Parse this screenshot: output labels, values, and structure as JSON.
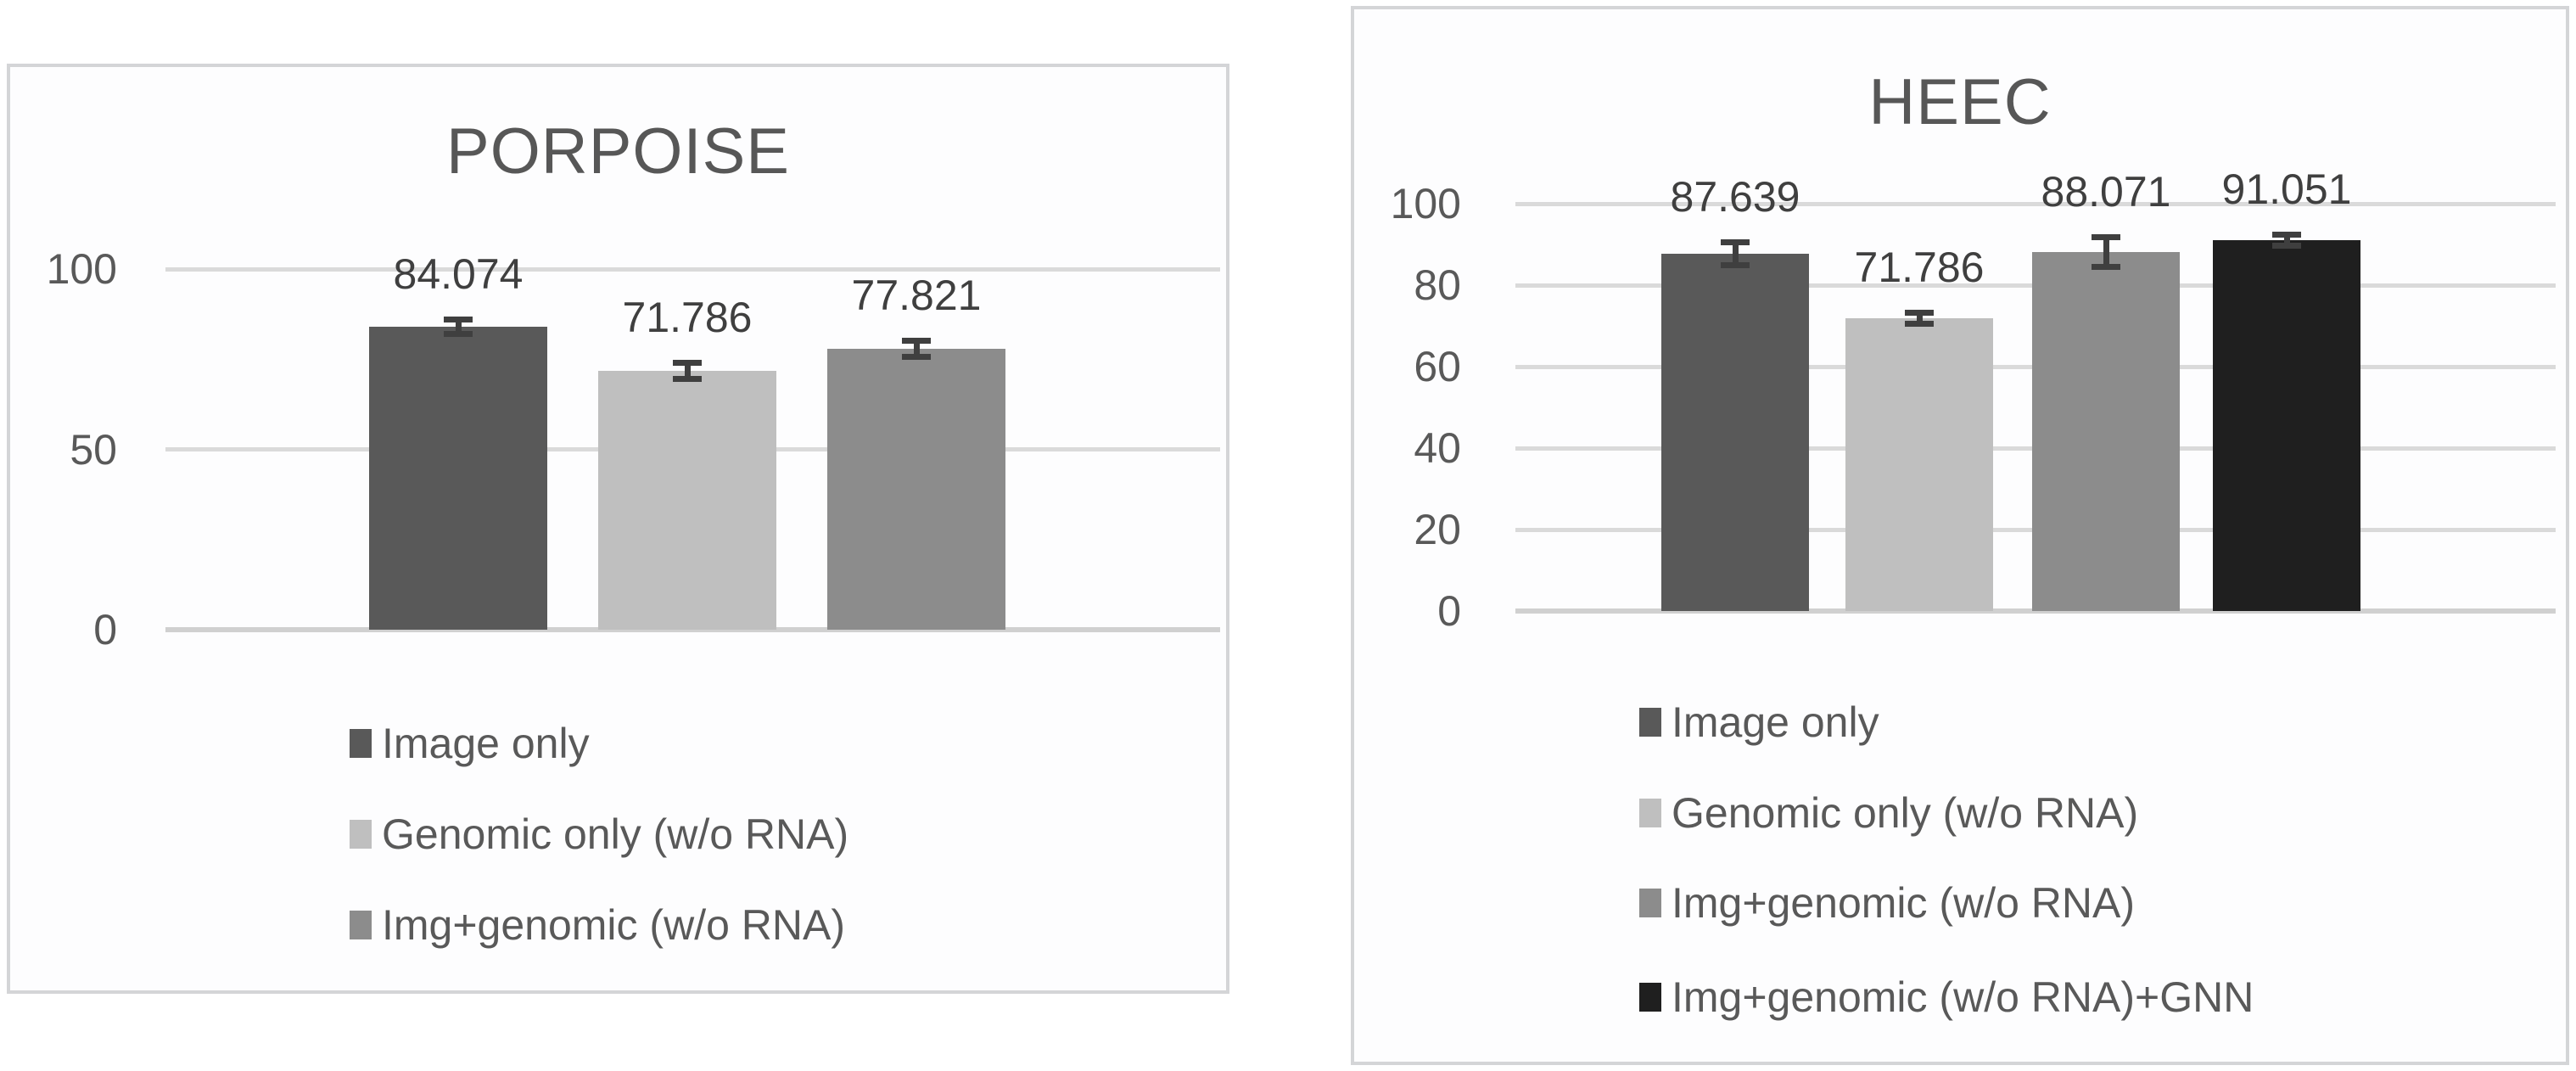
{
  "figure": {
    "background": "#ffffff",
    "panel_background": "#fdfdfe",
    "panel_border_color": "#d4d5d7"
  },
  "colors": {
    "gridline": "#dadada",
    "baseline": "#d0d0d0",
    "axis_text": "#595959",
    "data_label_text": "#3f3f3f",
    "title_text": "#575757",
    "error_bar": "#3f3f3f"
  },
  "chart_data": [
    {
      "id": "porpoise",
      "type": "bar",
      "title": "PORPOISE",
      "categories": [
        "Image only",
        "Genomic only (w/o RNA)",
        "Img+genomic (w/o RNA)"
      ],
      "values": [
        84.074,
        71.786,
        77.821
      ],
      "data_labels": [
        "84.074",
        "71.786",
        "77.821"
      ],
      "errors": [
        2.8,
        3.0,
        3.0
      ],
      "bar_colors": [
        "#595959",
        "#bfbfbf",
        "#8c8c8c"
      ],
      "ytick_labels": [
        "100",
        "50",
        "0"
      ],
      "yticks": [
        100,
        50,
        0
      ],
      "ylim": [
        0,
        100
      ],
      "grid": true,
      "legend_position": "bottom-left-vertical",
      "legend": [
        {
          "label": "Image only",
          "color": "#595959"
        },
        {
          "label": "Genomic only (w/o RNA)",
          "color": "#bfbfbf"
        },
        {
          "label": "Img+genomic (w/o RNA)",
          "color": "#8c8c8c"
        }
      ]
    },
    {
      "id": "heec",
      "type": "bar",
      "title": "HEEC",
      "categories": [
        "Image only",
        "Genomic only (w/o RNA)",
        "Img+genomic (w/o RNA)",
        "Img+genomic (w/o RNA)+GNN"
      ],
      "values": [
        87.639,
        71.786,
        88.071,
        91.051
      ],
      "data_labels": [
        "87.639",
        "71.786",
        "88.071",
        "91.051"
      ],
      "errors": [
        3.5,
        2.1,
        4.4,
        2.1
      ],
      "bar_colors": [
        "#595959",
        "#bfbfbf",
        "#8c8c8c",
        "#1f1f1f"
      ],
      "ytick_labels": [
        "100",
        "80",
        "60",
        "40",
        "20",
        "0"
      ],
      "yticks": [
        100,
        80,
        60,
        40,
        20,
        0
      ],
      "ylim": [
        0,
        100
      ],
      "grid": true,
      "legend_position": "bottom-left-vertical",
      "legend": [
        {
          "label": "Image only",
          "color": "#595959"
        },
        {
          "label": "Genomic only (w/o RNA)",
          "color": "#bfbfbf"
        },
        {
          "label": "Img+genomic (w/o RNA)",
          "color": "#8c8c8c"
        },
        {
          "label": "Img+genomic (w/o RNA)+GNN",
          "color": "#1f1f1f"
        }
      ]
    }
  ]
}
